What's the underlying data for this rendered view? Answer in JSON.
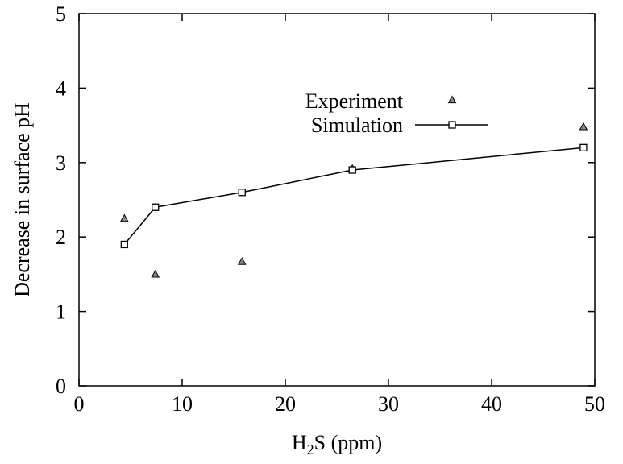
{
  "chart_data": {
    "type": "scatter",
    "xlabel": {
      "base": "H",
      "subscript": "2",
      "rest": "S (ppm)"
    },
    "ylabel": "Decrease in surface pH",
    "xlim": [
      0,
      50
    ],
    "ylim": [
      0,
      5
    ],
    "x_ticks": [
      0,
      10,
      20,
      30,
      40,
      50
    ],
    "y_ticks": [
      0,
      1,
      2,
      3,
      4,
      5
    ],
    "grid": false,
    "legend_position": "upper-right-inside",
    "series": [
      {
        "name": "Experiment",
        "style": "markers",
        "marker": "triangle",
        "color": "#000000",
        "points": [
          {
            "x": 4.4,
            "y": 2.25
          },
          {
            "x": 7.4,
            "y": 1.5
          },
          {
            "x": 15.8,
            "y": 1.67
          },
          {
            "x": 26.5,
            "y": 2.92
          },
          {
            "x": 48.9,
            "y": 3.48
          }
        ]
      },
      {
        "name": "Simulation",
        "style": "line+markers",
        "marker": "square",
        "color": "#000000",
        "points": [
          {
            "x": 4.4,
            "y": 1.9
          },
          {
            "x": 7.4,
            "y": 2.4
          },
          {
            "x": 15.8,
            "y": 2.6
          },
          {
            "x": 26.5,
            "y": 2.9
          },
          {
            "x": 48.9,
            "y": 3.2
          }
        ]
      }
    ]
  }
}
